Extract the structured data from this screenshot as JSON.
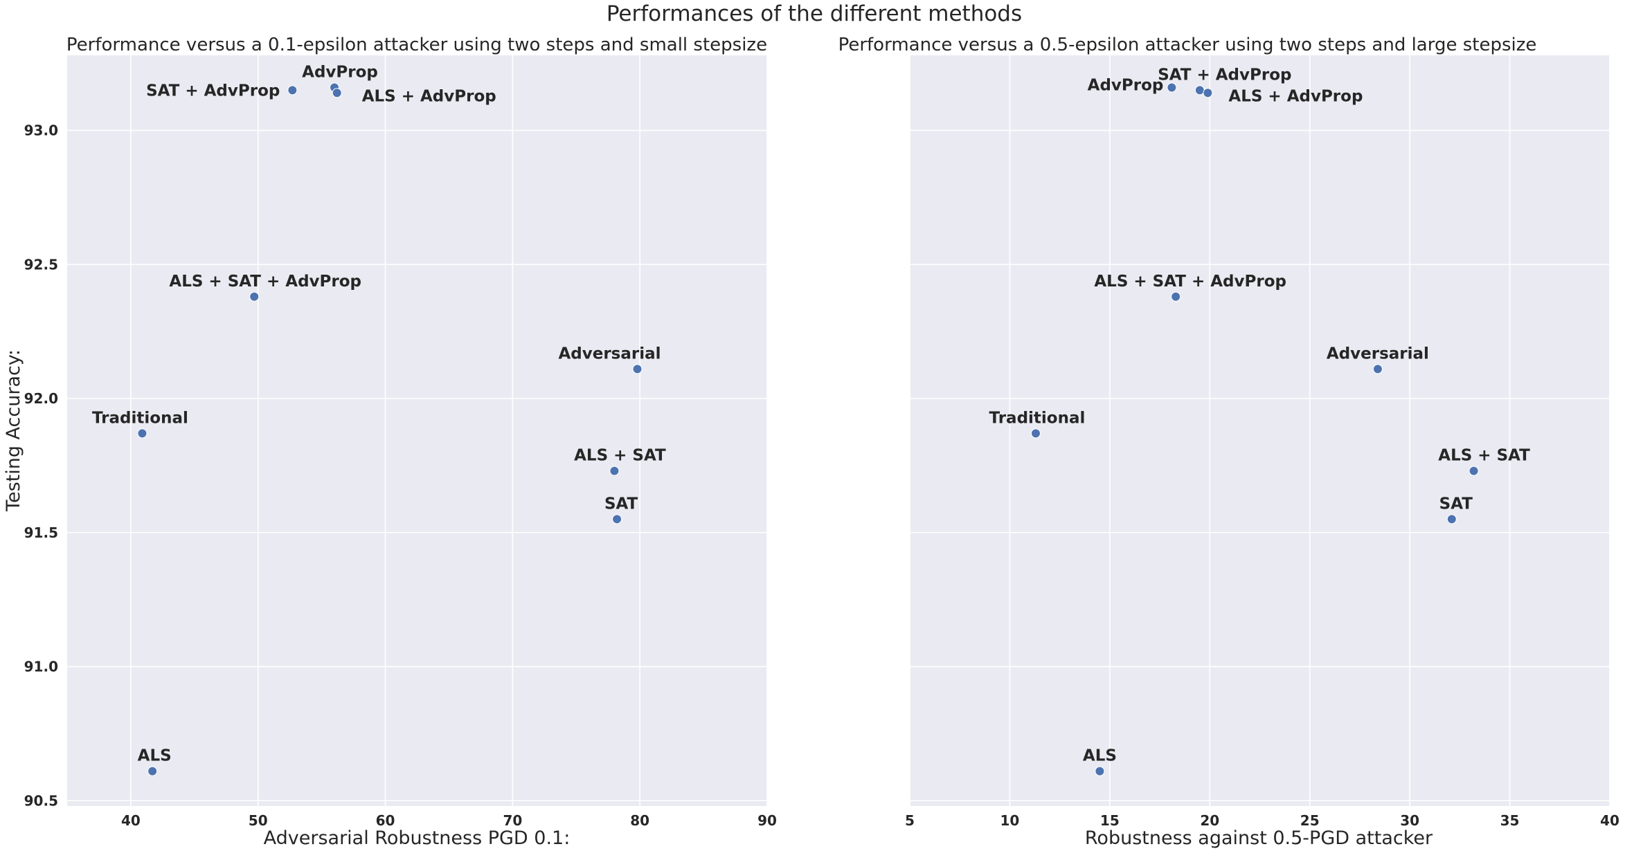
{
  "figure": {
    "suptitle": "Performances of the different methods"
  },
  "chart_data": [
    {
      "type": "scatter",
      "title": "Performance versus a 0.1-epsilon attacker using two steps and small stepsize",
      "xlabel": "Adversarial Robustness PGD 0.1:",
      "ylabel": "Testing Accuracy:",
      "xlim": [
        35,
        90
      ],
      "ylim": [
        90.48,
        93.28
      ],
      "xticks": [
        40,
        50,
        60,
        70,
        80,
        90
      ],
      "yticks": [
        90.5,
        91.0,
        91.5,
        92.0,
        92.5,
        93.0
      ],
      "xtick_labels": [
        "40",
        "50",
        "60",
        "70",
        "80",
        "90"
      ],
      "ytick_labels": [
        "90.5",
        "91.0",
        "91.5",
        "92.0",
        "92.5",
        "93.0"
      ],
      "grid": true,
      "points": [
        {
          "label": "AdvProp",
          "x": 56.0,
          "y": 93.16
        },
        {
          "label": "SAT + AdvProp",
          "x": 52.7,
          "y": 93.15
        },
        {
          "label": "ALS + AdvProp",
          "x": 56.2,
          "y": 93.14
        },
        {
          "label": "ALS + SAT + AdvProp",
          "x": 49.7,
          "y": 92.38
        },
        {
          "label": "Adversarial",
          "x": 79.8,
          "y": 92.11
        },
        {
          "label": "Traditional",
          "x": 40.9,
          "y": 91.87
        },
        {
          "label": "ALS + SAT",
          "x": 78.0,
          "y": 91.73
        },
        {
          "label": "SAT",
          "x": 78.2,
          "y": 91.55
        },
        {
          "label": "ALS",
          "x": 41.7,
          "y": 90.61
        }
      ]
    },
    {
      "type": "scatter",
      "title": "Performance versus a 0.5-epsilon attacker using two steps and large stepsize",
      "xlabel": "Robustness against 0.5-PGD attacker",
      "ylabel": "",
      "xlim": [
        5,
        40
      ],
      "ylim": [
        90.48,
        93.28
      ],
      "xticks": [
        5,
        10,
        15,
        20,
        25,
        30,
        35,
        40
      ],
      "yticks": [
        90.5,
        91.0,
        91.5,
        92.0,
        92.5,
        93.0
      ],
      "xtick_labels": [
        "5",
        "10",
        "15",
        "20",
        "25",
        "30",
        "35",
        "40"
      ],
      "ytick_labels": [],
      "grid": true,
      "points": [
        {
          "label": "AdvProp",
          "x": 18.1,
          "y": 93.16
        },
        {
          "label": "SAT + AdvProp",
          "x": 19.5,
          "y": 93.15
        },
        {
          "label": "ALS + AdvProp",
          "x": 19.9,
          "y": 93.14
        },
        {
          "label": "ALS + SAT + AdvProp",
          "x": 18.3,
          "y": 92.38
        },
        {
          "label": "Adversarial",
          "x": 28.4,
          "y": 92.11
        },
        {
          "label": "Traditional",
          "x": 11.3,
          "y": 91.87
        },
        {
          "label": "ALS + SAT",
          "x": 33.2,
          "y": 91.73
        },
        {
          "label": "SAT",
          "x": 32.1,
          "y": 91.55
        },
        {
          "label": "ALS",
          "x": 14.5,
          "y": 90.61
        }
      ]
    }
  ]
}
